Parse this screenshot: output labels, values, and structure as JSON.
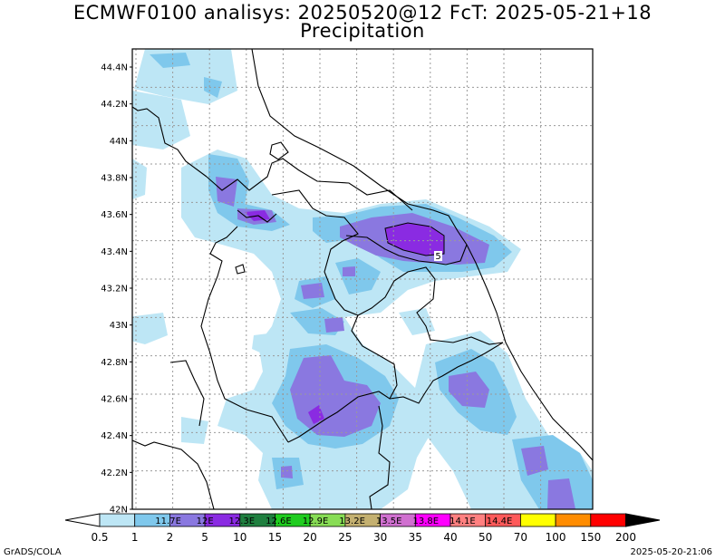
{
  "header": {
    "title_line1": "ECMWF0100 analisys: 20250520@12 FcT: 2025-05-21+18",
    "title_line2": "Precipitation"
  },
  "lat_axis": {
    "labels": [
      "44.4N",
      "44.2N",
      "44N",
      "43.8N",
      "43.6N",
      "43.4N",
      "43.2N",
      "43N",
      "42.8N",
      "42.6N",
      "42.4N",
      "42.2N",
      "42N"
    ]
  },
  "lon_grid": {
    "labels": [
      "11.7E",
      "12E",
      "12.3E",
      "12.6E",
      "12.9E",
      "13.2E",
      "13.5E",
      "13.8E",
      "14.1E",
      "14.4E"
    ]
  },
  "colorbar": {
    "values": [
      "0.5",
      "1",
      "2",
      "5",
      "10",
      "15",
      "20",
      "25",
      "30",
      "35",
      "40",
      "50",
      "70",
      "100",
      "150",
      "200"
    ],
    "colors": [
      "#bde6f5",
      "#7fc8ec",
      "#8a78e0",
      "#8a2be2",
      "#1f7f3f",
      "#1fcc1f",
      "#88dd55",
      "#c4b070",
      "#d070d0",
      "#ff00ff",
      "#ff8080",
      "#ff5a5a",
      "#ffff00",
      "#ff8c00",
      "#ff0000",
      "#8b0000"
    ]
  },
  "contour_label": "5",
  "footer": {
    "credit": "GrADS/COLA",
    "timestamp": "2025-05-20-21:06"
  }
}
